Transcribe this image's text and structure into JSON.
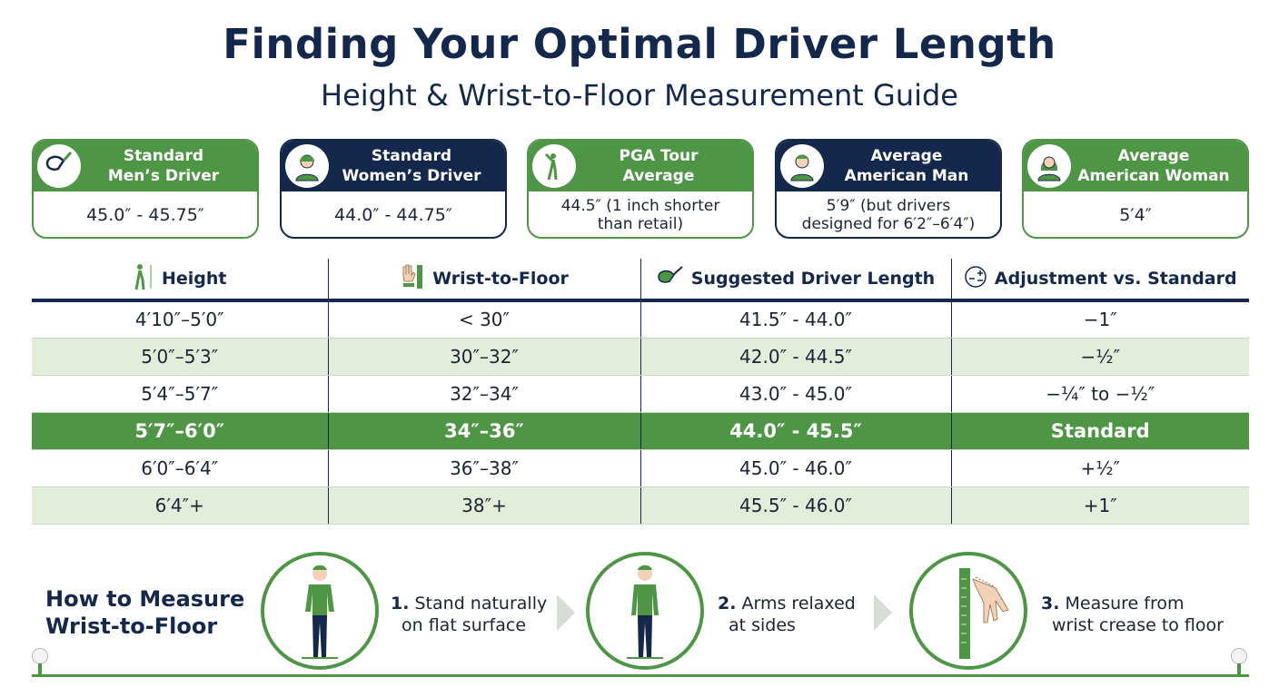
{
  "title": "Finding Your Optimal Driver Length",
  "subtitle": "Height & Wrist-to-Floor Measurement Guide",
  "cards": [
    {
      "title1": "Standard",
      "title2": "Men’s Driver",
      "value": "45.0″ - 45.75″",
      "icon": "driver-head-icon"
    },
    {
      "title1": "Standard",
      "title2": "Women’s Driver",
      "value": "44.0″ - 44.75″",
      "icon": "woman-golfer-icon"
    },
    {
      "title1": "PGA Tour",
      "title2": "Average",
      "value": "44.5″ (1 inch shorter than retail)",
      "icon": "golfer-swing-icon"
    },
    {
      "title1": "Average",
      "title2": "American Man",
      "value": "5′9″ (but drivers designed for 6′2″–6′4″)",
      "icon": "man-icon"
    },
    {
      "title1": "Average",
      "title2": "American Woman",
      "value": "5′4″",
      "icon": "woman-icon"
    }
  ],
  "table": {
    "headers": [
      "Height",
      "Wrist-to-Floor",
      "Suggested Driver Length",
      "Adjustment vs. Standard"
    ],
    "rows": [
      [
        "4′10″–5′0″",
        "< 30″",
        "41.5″ - 44.0″",
        "−1″"
      ],
      [
        "5′0″–5′3″",
        "30″–32″",
        "42.0″ - 44.5″",
        "−½″"
      ],
      [
        "5′4″–5′7″",
        "32″–34″",
        "43.0″ - 45.0″",
        "−¼″ to −½″"
      ],
      [
        "5′7″–6′0″",
        "34″–36″",
        "44.0″ - 45.5″",
        "Standard"
      ],
      [
        "6′0″–6′4″",
        "36″–38″",
        "45.0″ - 46.0″",
        "+½″"
      ],
      [
        "6′4″+",
        "38″+",
        "45.5″ - 46.0″",
        "+1″"
      ]
    ]
  },
  "howto": {
    "line1": "How to Measure",
    "line2": "Wrist-to-Floor"
  },
  "steps": [
    {
      "num": "1.",
      "line1": "Stand naturally",
      "line2": "on flat surface"
    },
    {
      "num": "2.",
      "line1": "Arms relaxed",
      "line2": "at sides"
    },
    {
      "num": "3.",
      "line1": "Measure from",
      "line2": "wrist crease to floor"
    }
  ],
  "colors": {
    "navy": "#14284b",
    "green": "#4f9546",
    "light_green": "#e2eed9"
  }
}
